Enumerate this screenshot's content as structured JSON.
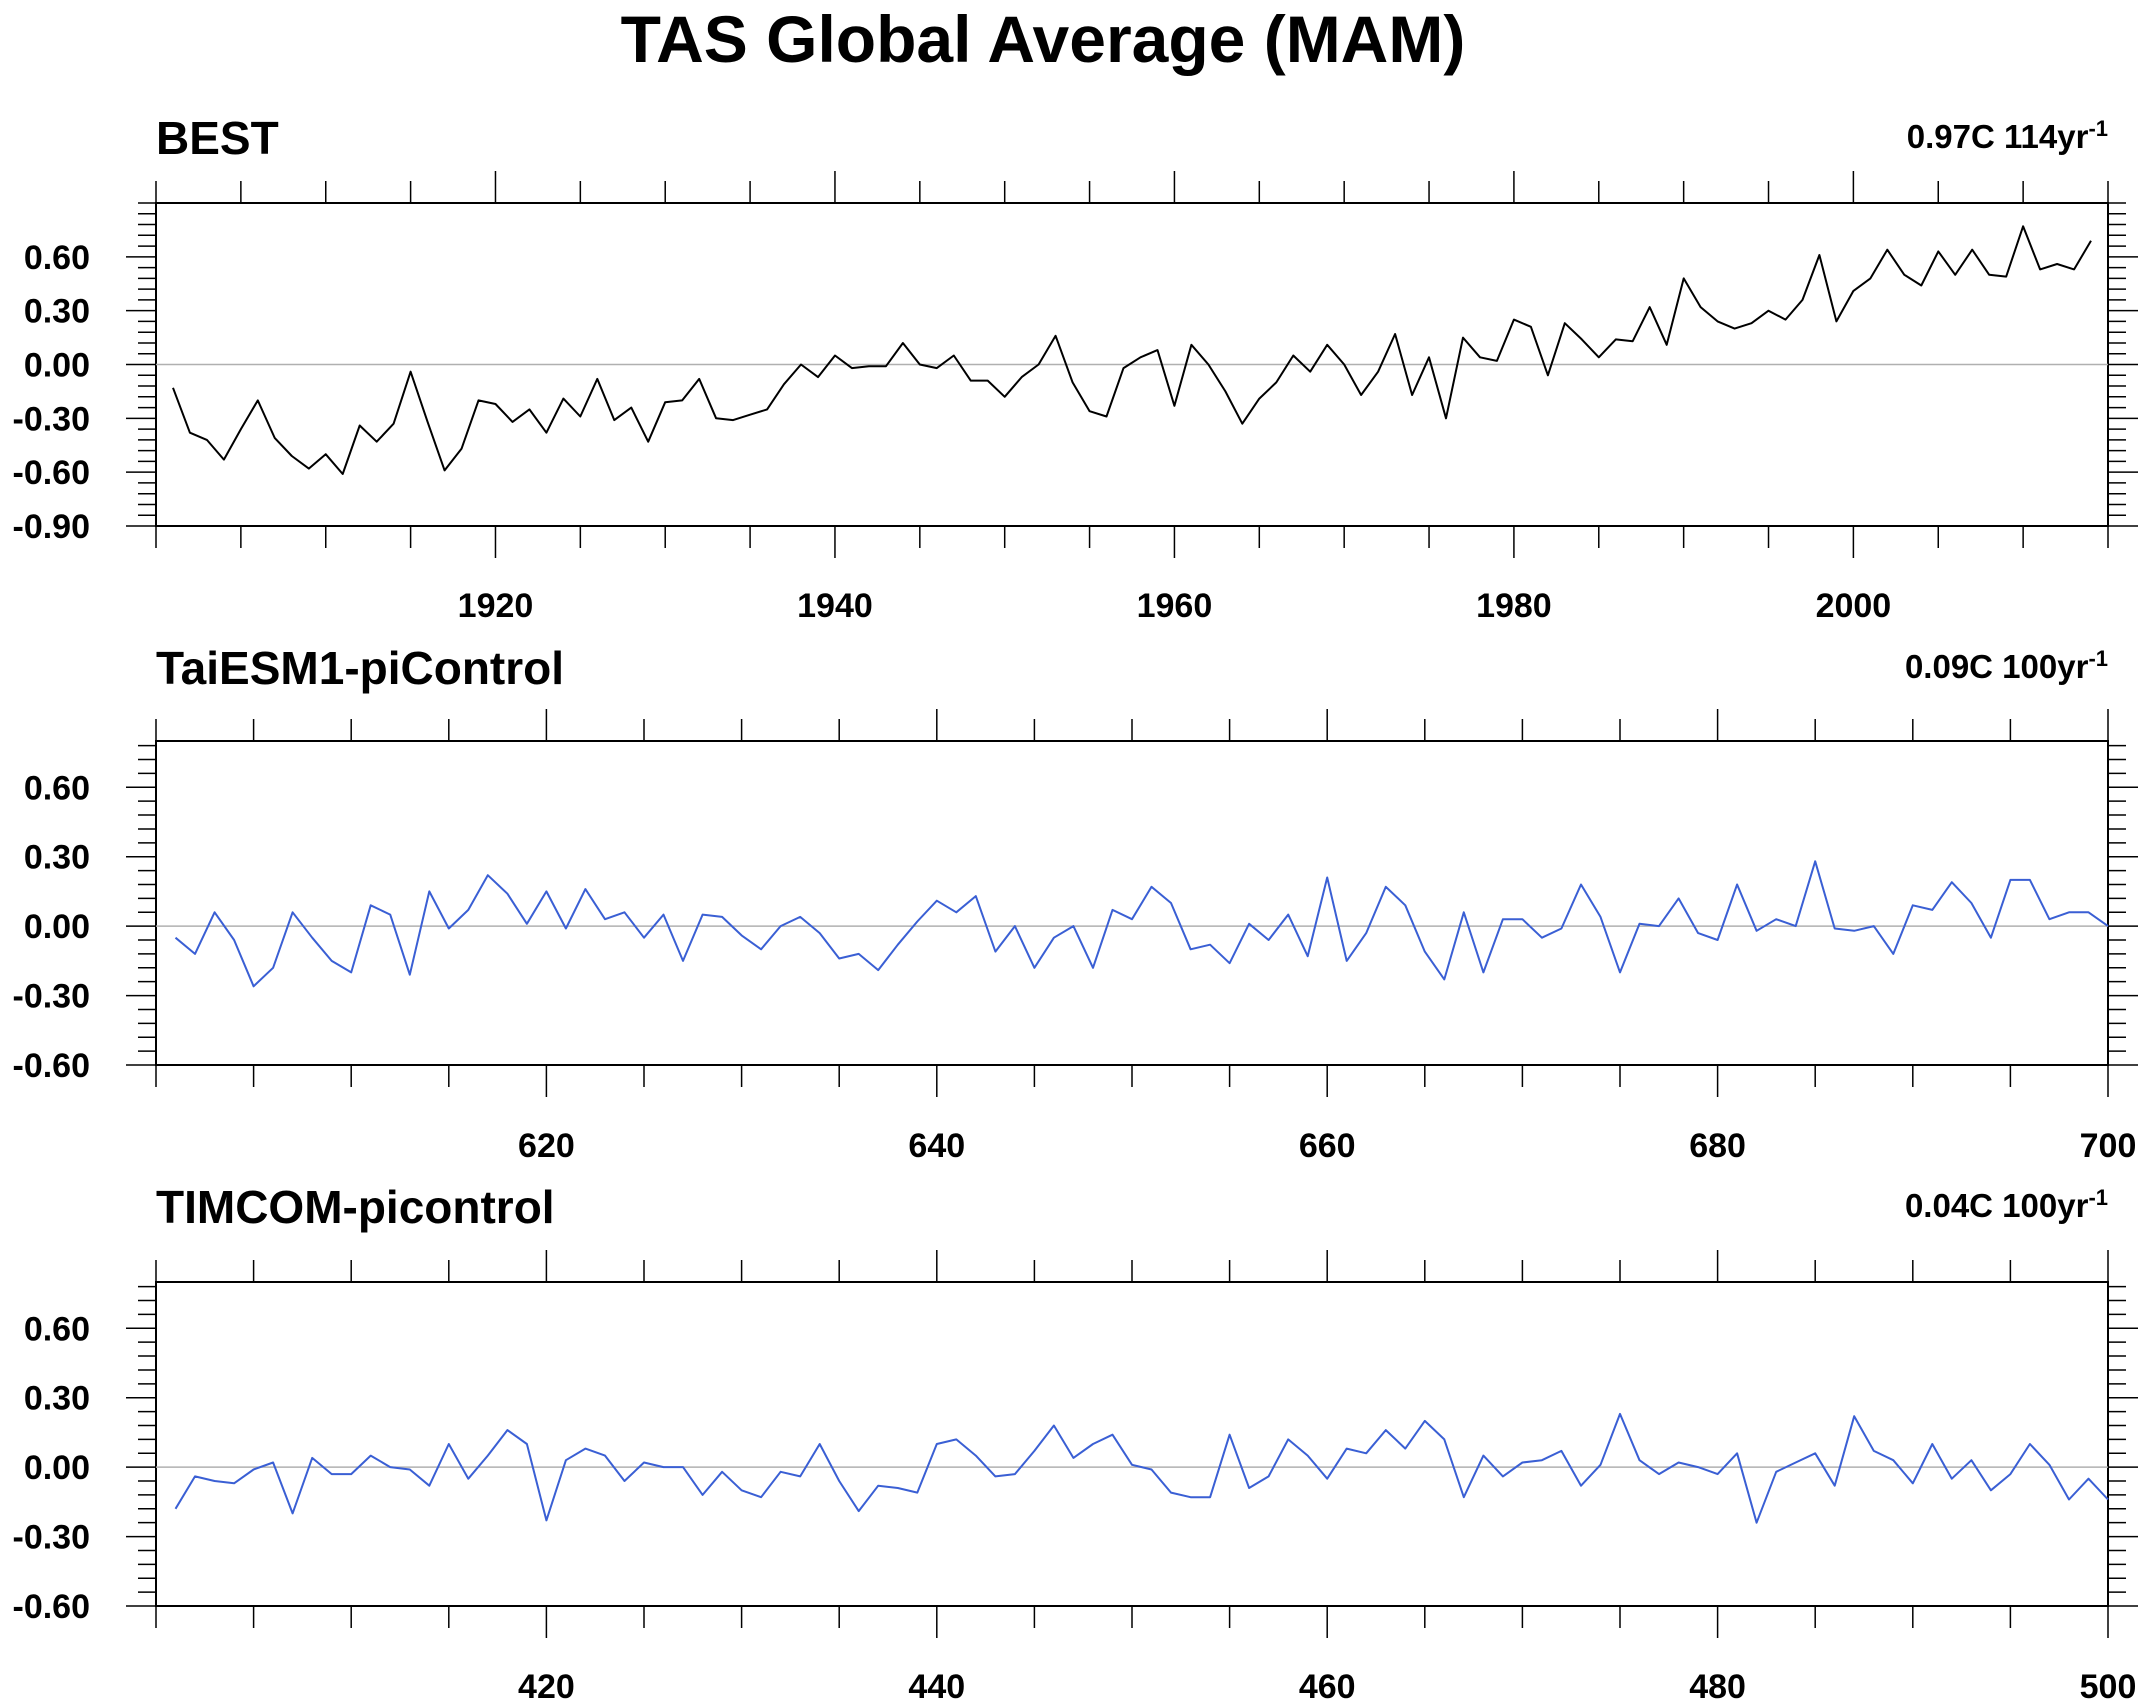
{
  "figure": {
    "title": "TAS Global Average (MAM)"
  },
  "chart_data": [
    {
      "type": "line",
      "title": "BEST",
      "trend_label": {
        "text": "0.97C 114yr",
        "sup": "-1"
      },
      "xlabel": "",
      "ylabel": "",
      "xlim": [
        1900,
        2015
      ],
      "ylim": [
        -0.9,
        0.9
      ],
      "xticks": [
        1920,
        1940,
        1960,
        1980,
        2000
      ],
      "yticks": [
        -0.9,
        -0.6,
        -0.3,
        0.0,
        0.3,
        0.6
      ],
      "ytick_labels": [
        "-0.90",
        "-0.60",
        "-0.30",
        "0.00",
        "0.30",
        "0.60"
      ],
      "zero_line": true,
      "grid": false,
      "line_color": "#000000",
      "series": [
        {
          "x_start": 1901,
          "values": [
            -0.13,
            -0.38,
            -0.42,
            -0.53,
            -0.36,
            -0.2,
            -0.41,
            -0.51,
            -0.58,
            -0.5,
            -0.61,
            -0.34,
            -0.43,
            -0.33,
            -0.04,
            -0.32,
            -0.59,
            -0.47,
            -0.2,
            -0.22,
            -0.32,
            -0.25,
            -0.38,
            -0.19,
            -0.29,
            -0.08,
            -0.31,
            -0.24,
            -0.43,
            -0.21,
            -0.2,
            -0.08,
            -0.3,
            -0.31,
            -0.28,
            -0.25,
            -0.11,
            0.0,
            -0.07,
            0.05,
            -0.02,
            -0.01,
            -0.01,
            0.12,
            0.0,
            -0.02,
            0.05,
            -0.09,
            -0.09,
            -0.18,
            -0.07,
            0.0,
            0.16,
            -0.1,
            -0.26,
            -0.29,
            -0.02,
            0.04,
            0.08,
            -0.23,
            0.11,
            0.0,
            -0.15,
            -0.33,
            -0.19,
            -0.1,
            0.05,
            -0.04,
            0.11,
            0.0,
            -0.17,
            -0.04,
            0.17,
            -0.17,
            0.04,
            -0.3,
            0.15,
            0.04,
            0.02,
            0.25,
            0.21,
            -0.06,
            0.23,
            0.14,
            0.04,
            0.14,
            0.13,
            0.32,
            0.11,
            0.48,
            0.32,
            0.24,
            0.2,
            0.23,
            0.3,
            0.25,
            0.36,
            0.61,
            0.24,
            0.41,
            0.48,
            0.64,
            0.5,
            0.44,
            0.63,
            0.5,
            0.64,
            0.5,
            0.49,
            0.77,
            0.53,
            0.56,
            0.53,
            0.69
          ]
        }
      ]
    },
    {
      "type": "line",
      "title": "TaiESM1-piControl",
      "trend_label": {
        "text": "0.09C 100yr",
        "sup": "-1"
      },
      "xlabel": "",
      "ylabel": "",
      "xlim": [
        600,
        700
      ],
      "ylim": [
        -0.6,
        0.8
      ],
      "xticks": [
        620,
        640,
        660,
        680,
        700
      ],
      "yticks": [
        -0.6,
        -0.3,
        0.0,
        0.3,
        0.6
      ],
      "ytick_labels": [
        "-0.60",
        "-0.30",
        "0.00",
        "0.30",
        "0.60"
      ],
      "zero_line": true,
      "grid": false,
      "line_color": "#3a5fd4",
      "series": [
        {
          "x_start": 601,
          "values": [
            -0.05,
            -0.12,
            0.06,
            -0.06,
            -0.26,
            -0.18,
            0.06,
            -0.05,
            -0.15,
            -0.2,
            0.09,
            0.05,
            -0.21,
            0.15,
            -0.01,
            0.07,
            0.22,
            0.14,
            0.01,
            0.15,
            -0.01,
            0.16,
            0.03,
            0.06,
            -0.05,
            0.05,
            -0.15,
            0.05,
            0.04,
            -0.04,
            -0.1,
            0.0,
            0.04,
            -0.03,
            -0.14,
            -0.12,
            -0.19,
            -0.08,
            0.02,
            0.11,
            0.06,
            0.13,
            -0.11,
            0.0,
            -0.18,
            -0.05,
            0.0,
            -0.18,
            0.07,
            0.03,
            0.17,
            0.1,
            -0.1,
            -0.08,
            -0.16,
            0.01,
            -0.06,
            0.05,
            -0.13,
            0.21,
            -0.15,
            -0.03,
            0.17,
            0.09,
            -0.11,
            -0.23,
            0.06,
            -0.2,
            0.03,
            0.03,
            -0.05,
            -0.01,
            0.18,
            0.04,
            -0.2,
            0.01,
            0.0,
            0.12,
            -0.03,
            -0.06,
            0.18,
            -0.02,
            0.03,
            0.0,
            0.28,
            -0.01,
            -0.02,
            0.0,
            -0.12,
            0.09,
            0.07,
            0.19,
            0.1,
            -0.05,
            0.2,
            0.2,
            0.03,
            0.06,
            0.06,
            0.0
          ]
        }
      ]
    },
    {
      "type": "line",
      "title": "TIMCOM-picontrol",
      "trend_label": {
        "text": "0.04C 100yr",
        "sup": "-1"
      },
      "xlabel": "",
      "ylabel": "",
      "xlim": [
        400,
        500
      ],
      "ylim": [
        -0.6,
        0.8
      ],
      "xticks": [
        420,
        440,
        460,
        480,
        500
      ],
      "yticks": [
        -0.6,
        -0.3,
        0.0,
        0.3,
        0.6
      ],
      "ytick_labels": [
        "-0.60",
        "-0.30",
        "0.00",
        "0.30",
        "0.60"
      ],
      "zero_line": true,
      "grid": false,
      "line_color": "#3a5fd4",
      "series": [
        {
          "x_start": 401,
          "values": [
            -0.18,
            -0.04,
            -0.06,
            -0.07,
            -0.01,
            0.02,
            -0.2,
            0.04,
            -0.03,
            -0.03,
            0.05,
            0.0,
            -0.01,
            -0.08,
            0.1,
            -0.05,
            0.05,
            0.16,
            0.1,
            -0.23,
            0.03,
            0.08,
            0.05,
            -0.06,
            0.02,
            0.0,
            0.0,
            -0.12,
            -0.02,
            -0.1,
            -0.13,
            -0.02,
            -0.04,
            0.1,
            -0.06,
            -0.19,
            -0.08,
            -0.09,
            -0.11,
            0.1,
            0.12,
            0.05,
            -0.04,
            -0.03,
            0.07,
            0.18,
            0.04,
            0.1,
            0.14,
            0.01,
            -0.01,
            -0.11,
            -0.13,
            -0.13,
            0.14,
            -0.09,
            -0.04,
            0.12,
            0.05,
            -0.05,
            0.08,
            0.06,
            0.16,
            0.08,
            0.2,
            0.12,
            -0.13,
            0.05,
            -0.04,
            0.02,
            0.03,
            0.07,
            -0.08,
            0.01,
            0.23,
            0.03,
            -0.03,
            0.02,
            0.0,
            -0.03,
            0.06,
            -0.24,
            -0.02,
            0.02,
            0.06,
            -0.08,
            0.22,
            0.07,
            0.03,
            -0.07,
            0.1,
            -0.05,
            0.03,
            -0.1,
            -0.03,
            0.1,
            0.01,
            -0.14,
            -0.05,
            -0.14
          ]
        }
      ]
    }
  ]
}
